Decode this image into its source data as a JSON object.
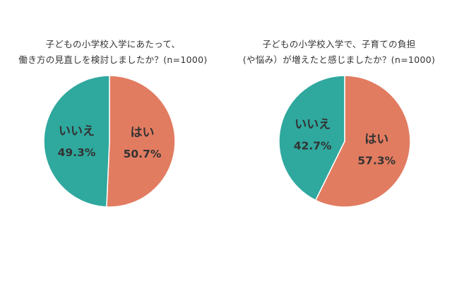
{
  "chart_data": [
    {
      "type": "pie",
      "title_lines": [
        "子どもの小学校入学にあたって、",
        "働き方の見直しを検討しましたか？(n=1000)"
      ],
      "slices": [
        {
          "label": "はい",
          "value": 50.7,
          "value_label": "50.7%",
          "color": "#e27c61"
        },
        {
          "label": "いいえ",
          "value": 49.3,
          "value_label": "49.3%",
          "color": "#2fa89e"
        }
      ]
    },
    {
      "type": "pie",
      "title_lines": [
        "子どもの小学校入学で、子育ての負担",
        "(や悩み）が増えたと感じましたか？(n=1000)"
      ],
      "slices": [
        {
          "label": "はい",
          "value": 57.3,
          "value_label": "57.3%",
          "color": "#e27c61"
        },
        {
          "label": "いいえ",
          "value": 42.7,
          "value_label": "42.7%",
          "color": "#2fa89e"
        }
      ]
    }
  ],
  "label_color": "#333333",
  "border_color": "#ffffff"
}
